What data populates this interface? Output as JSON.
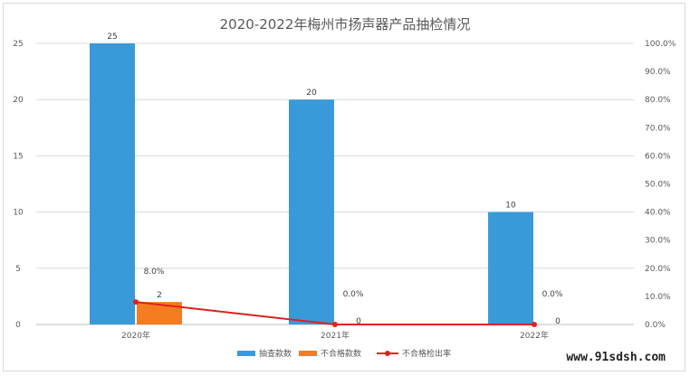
{
  "chart_data": {
    "type": "bar",
    "title": "2020-2022年梅州市扬声器产品抽检情况",
    "categories": [
      "2020年",
      "2021年",
      "2022年"
    ],
    "series": [
      {
        "name": "抽查款数",
        "type": "bar",
        "axis": "left",
        "color": "#3a9ad9",
        "values": [
          25,
          20,
          10
        ],
        "labels": [
          "25",
          "20",
          "10"
        ]
      },
      {
        "name": "不合格款数",
        "type": "bar",
        "axis": "left",
        "color": "#f57c20",
        "values": [
          2,
          0,
          0
        ],
        "labels": [
          "2",
          "0",
          "0"
        ]
      },
      {
        "name": "不合格检出率",
        "type": "line",
        "axis": "right",
        "color": "#e02020",
        "values": [
          8.0,
          0.0,
          0.0
        ],
        "labels": [
          "8.0%",
          "0.0%",
          "0.0%"
        ]
      }
    ],
    "y_left": {
      "min": 0,
      "max": 25,
      "ticks": [
        "0",
        "5",
        "10",
        "15",
        "20",
        "25"
      ]
    },
    "y_right": {
      "min": 0,
      "max": 100,
      "ticks": [
        "0.0%",
        "10.0%",
        "20.0%",
        "30.0%",
        "40.0%",
        "50.0%",
        "60.0%",
        "70.0%",
        "80.0%",
        "90.0%",
        "100.0%"
      ]
    },
    "grid": true,
    "legend_position": "bottom"
  },
  "watermark": "www.91sdsh.com"
}
